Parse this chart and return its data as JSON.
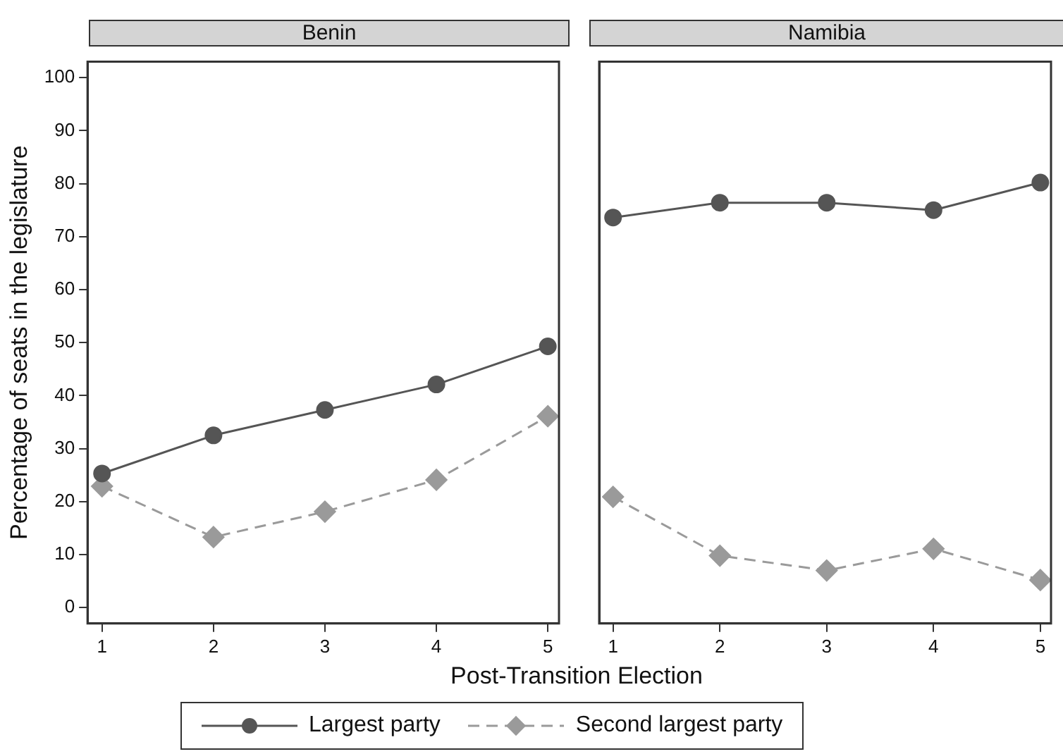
{
  "chart_data": [
    {
      "type": "line",
      "title": "Benin",
      "xlabel": "Post-Transition Election",
      "ylabel": "Percentage of seats in the legislature",
      "x": [
        1,
        2,
        3,
        4,
        5
      ],
      "xlim": [
        0.87,
        5.1
      ],
      "xticks": [
        1,
        2,
        3,
        4,
        5
      ],
      "ylim": [
        -3,
        103
      ],
      "yticks": [
        0,
        10,
        20,
        30,
        40,
        50,
        60,
        70,
        80,
        90,
        100
      ],
      "grid": false,
      "legend": "bottom",
      "series": [
        {
          "name": "Largest party",
          "color": "#555555",
          "marker": "circle",
          "line_style": "solid",
          "values": [
            25.3,
            32.5,
            37.3,
            42.1,
            49.3
          ]
        },
        {
          "name": "Second largest party",
          "color": "#9a9a9a",
          "marker": "diamond",
          "line_style": "dashed",
          "values": [
            22.9,
            13.3,
            18.1,
            24.1,
            36.1
          ]
        }
      ]
    },
    {
      "type": "line",
      "title": "Namibia",
      "x": [
        1,
        2,
        3,
        4,
        5
      ],
      "xlim": [
        0.87,
        5.1
      ],
      "xticks": [
        1,
        2,
        3,
        4,
        5
      ],
      "ylim": [
        -3,
        103
      ],
      "yticks": [
        0,
        10,
        20,
        30,
        40,
        50,
        60,
        70,
        80,
        90,
        100
      ],
      "tick_labels": "x",
      "grid": false,
      "legend": "bottom",
      "series": [
        {
          "name": "Largest party",
          "color": "#555555",
          "marker": "circle",
          "line_style": "solid",
          "values": [
            73.6,
            76.4,
            76.4,
            75.0,
            80.2
          ]
        },
        {
          "name": "Second largest party",
          "color": "#9a9a9a",
          "marker": "diamond",
          "line_style": "dashed",
          "values": [
            20.9,
            9.8,
            7.0,
            11.1,
            5.2
          ]
        }
      ]
    }
  ]
}
